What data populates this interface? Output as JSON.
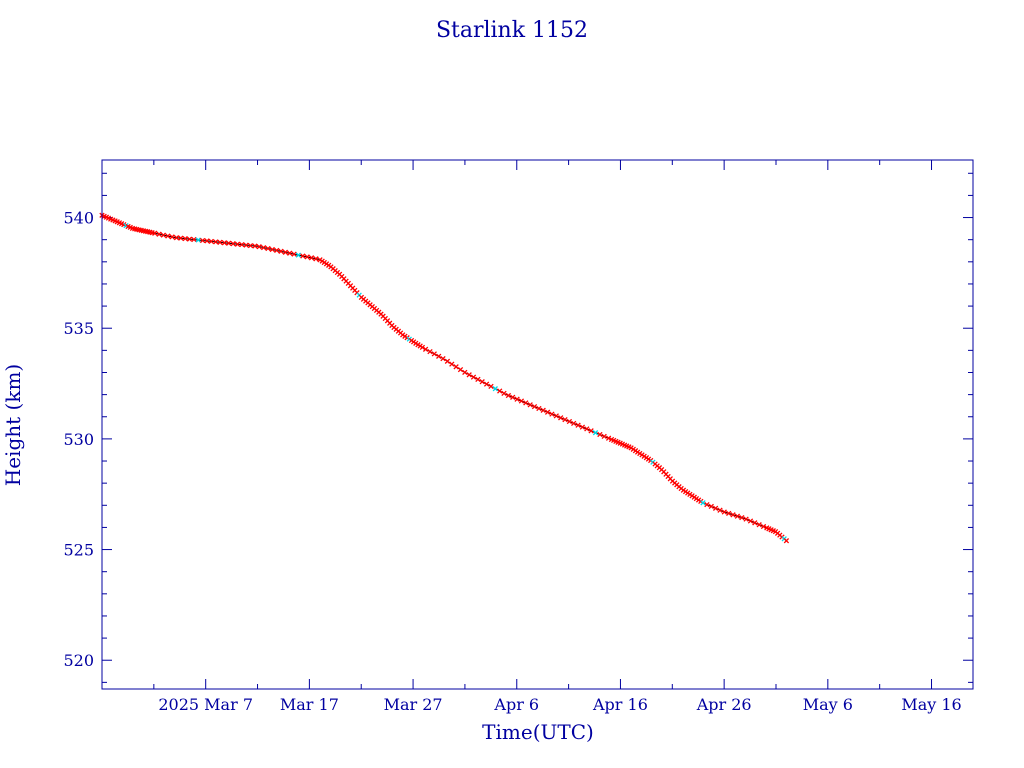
{
  "chart_data": {
    "type": "line",
    "title": "Starlink 1152",
    "xlabel": "Time(UTC)",
    "ylabel": "Height (km)",
    "x_tick_labels": [
      "2025 Mar  7",
      "Mar 17",
      "Mar 27",
      "Apr  6",
      "Apr 16",
      "Apr 26",
      "May  6",
      "May 16"
    ],
    "x_tick_dates": [
      "2025-03-07",
      "2025-03-17",
      "2025-03-27",
      "2025-04-06",
      "2025-04-16",
      "2025-04-26",
      "2025-05-06",
      "2025-05-16"
    ],
    "xlim": [
      "2025-02-25",
      "2025-05-20"
    ],
    "y_ticks": [
      520,
      525,
      530,
      535,
      540
    ],
    "ylim": [
      518.7,
      542.6
    ],
    "grid": false,
    "legend": "none",
    "series": [
      {
        "x": [
          "2025-02-25",
          "2025-02-26",
          "2025-02-27",
          "2025-02-28",
          "2025-03-01",
          "2025-03-02",
          "2025-03-04",
          "2025-03-06",
          "2025-03-08",
          "2025-03-10",
          "2025-03-12",
          "2025-03-14",
          "2025-03-16",
          "2025-03-18",
          "2025-03-19",
          "2025-03-20",
          "2025-03-21",
          "2025-03-22",
          "2025-03-23",
          "2025-03-24",
          "2025-03-25",
          "2025-03-26",
          "2025-03-27",
          "2025-03-28",
          "2025-03-30",
          "2025-04-01",
          "2025-04-03",
          "2025-04-05",
          "2025-04-07",
          "2025-04-09",
          "2025-04-11",
          "2025-04-13",
          "2025-04-15",
          "2025-04-16",
          "2025-04-17",
          "2025-04-18",
          "2025-04-19",
          "2025-04-20",
          "2025-04-21",
          "2025-04-22",
          "2025-04-23",
          "2025-04-24",
          "2025-04-26",
          "2025-04-28",
          "2025-04-30",
          "2025-05-01",
          "2025-05-02"
        ],
        "y": [
          540.1,
          539.9,
          539.7,
          539.5,
          539.4,
          539.3,
          539.1,
          539.0,
          538.9,
          538.8,
          538.7,
          538.5,
          538.3,
          538.1,
          537.8,
          537.4,
          536.9,
          536.4,
          536.0,
          535.6,
          535.1,
          534.7,
          534.4,
          534.1,
          533.6,
          533.0,
          532.5,
          532.0,
          531.6,
          531.2,
          530.8,
          530.4,
          530.0,
          529.8,
          529.6,
          529.3,
          529.0,
          528.6,
          528.1,
          527.7,
          527.4,
          527.1,
          526.7,
          526.4,
          526.0,
          525.8,
          525.4
        ]
      }
    ],
    "colors": {
      "frame": "#0000a0",
      "line": "#000000",
      "marker": "#ff0000",
      "marker_alt": "#00d8e8"
    }
  }
}
